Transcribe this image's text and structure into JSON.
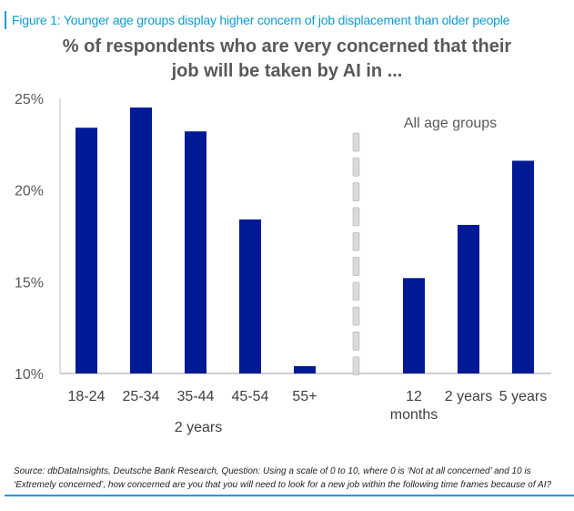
{
  "figure_title": "Figure 1: Younger age groups display higher concern of job displacement than older people",
  "source_note": "Source: dbDataInsights, Deutsche Bank Research, Question: Using a scale of 0 to 10, where 0 is ‘Not at all concerned’ and 10 is ‘Extremely concerned’, how concerned are you that you will need to look for a new job within the following time frames because of AI?",
  "colors": {
    "bar": "#001a96",
    "title_accent": "#0a9bd8",
    "axis": "#bfbfbf",
    "divider": "#d9d9d9"
  },
  "chart_data": {
    "type": "bar",
    "title_lines": [
      "% of respondents who are very concerned that their",
      "job will be taken by AI in ..."
    ],
    "ylabel": "",
    "ylim": [
      10,
      25
    ],
    "yticks": [
      10,
      15,
      20,
      25
    ],
    "ytick_labels": [
      "10%",
      "15%",
      "20%",
      "25%"
    ],
    "grid": false,
    "groups": [
      {
        "name": "age_groups",
        "group_label": "2 years",
        "categories": [
          "18-24",
          "25-34",
          "35-44",
          "45-54",
          "55+"
        ],
        "values": [
          23.4,
          24.5,
          23.2,
          18.4,
          10.4
        ]
      },
      {
        "name": "all_age_groups",
        "group_label": "All age groups",
        "categories": [
          "12 months",
          "2 years",
          "5 years"
        ],
        "category_lines": [
          [
            "12",
            "months"
          ],
          [
            "2 years"
          ],
          [
            "5 years"
          ]
        ],
        "values": [
          15.2,
          18.1,
          21.6
        ]
      }
    ],
    "annotations": [
      "All age groups"
    ],
    "legend": "none"
  }
}
